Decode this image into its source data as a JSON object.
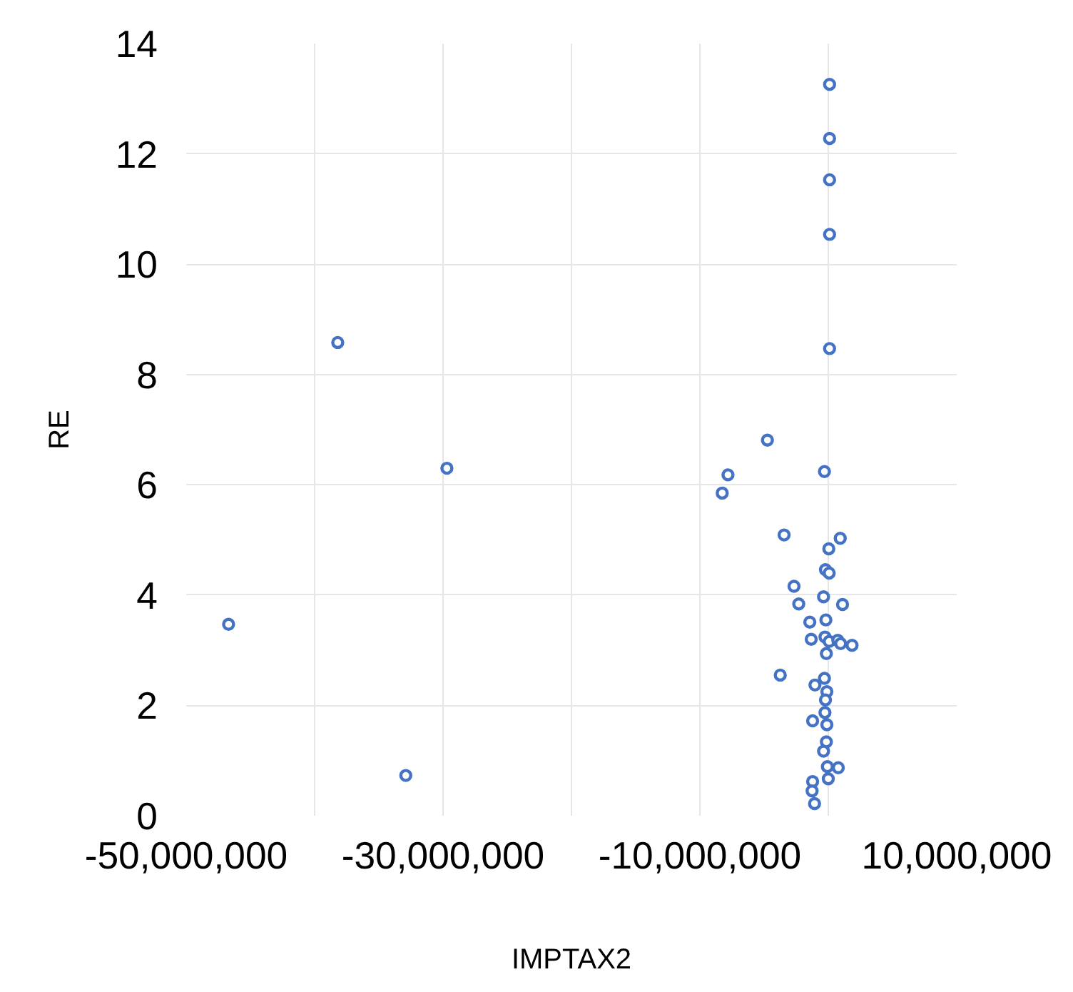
{
  "chart_data": {
    "type": "scatter",
    "xlabel": "IMPTAX2",
    "ylabel": "RE",
    "xlim": [
      -50000000,
      10000000
    ],
    "xticks": [
      {
        "value": -50000000,
        "label": "-50,000,000"
      },
      {
        "value": -40000000,
        "label": null
      },
      {
        "value": -30000000,
        "label": "-30,000,000"
      },
      {
        "value": -20000000,
        "label": null
      },
      {
        "value": -10000000,
        "label": "-10,000,000"
      },
      {
        "value": 0,
        "label": null
      },
      {
        "value": 10000000,
        "label": "10,000,000"
      }
    ],
    "ylim": [
      0,
      14
    ],
    "yticks": [
      0,
      2,
      4,
      6,
      8,
      10,
      12,
      14
    ],
    "grid": true,
    "marker": "circle",
    "series": [
      {
        "color": "#4472c4",
        "x": [
          -46700000,
          -38200000,
          -29700000,
          -32900000,
          100000,
          100000,
          100000,
          100000,
          100000,
          -4740000,
          -7810000,
          -300000,
          -8260000,
          -3440000,
          930000,
          40000,
          -220000,
          70000,
          -2670000,
          -370000,
          -2300000,
          1110000,
          -190000,
          -1440000,
          -1330000,
          -260000,
          70000,
          740000,
          960000,
          1850000,
          -150000,
          -3740000,
          -300000,
          -1040000,
          -110000,
          -220000,
          -260000,
          -1220000,
          -110000,
          -150000,
          -370000,
          -70000,
          780000,
          0,
          -1220000,
          -1260000,
          -1070000
        ],
        "values": [
          3.47,
          8.58,
          6.3,
          0.73,
          13.26,
          12.28,
          11.53,
          10.54,
          8.47,
          6.81,
          6.18,
          6.24,
          5.85,
          5.09,
          5.03,
          4.84,
          4.46,
          4.4,
          4.16,
          3.97,
          3.84,
          3.83,
          3.55,
          3.51,
          3.2,
          3.24,
          3.16,
          3.18,
          3.12,
          3.09,
          2.94,
          2.55,
          2.49,
          2.37,
          2.25,
          2.1,
          1.87,
          1.72,
          1.65,
          1.34,
          1.17,
          0.89,
          0.87,
          0.67,
          0.62,
          0.45,
          0.22
        ]
      }
    ]
  }
}
